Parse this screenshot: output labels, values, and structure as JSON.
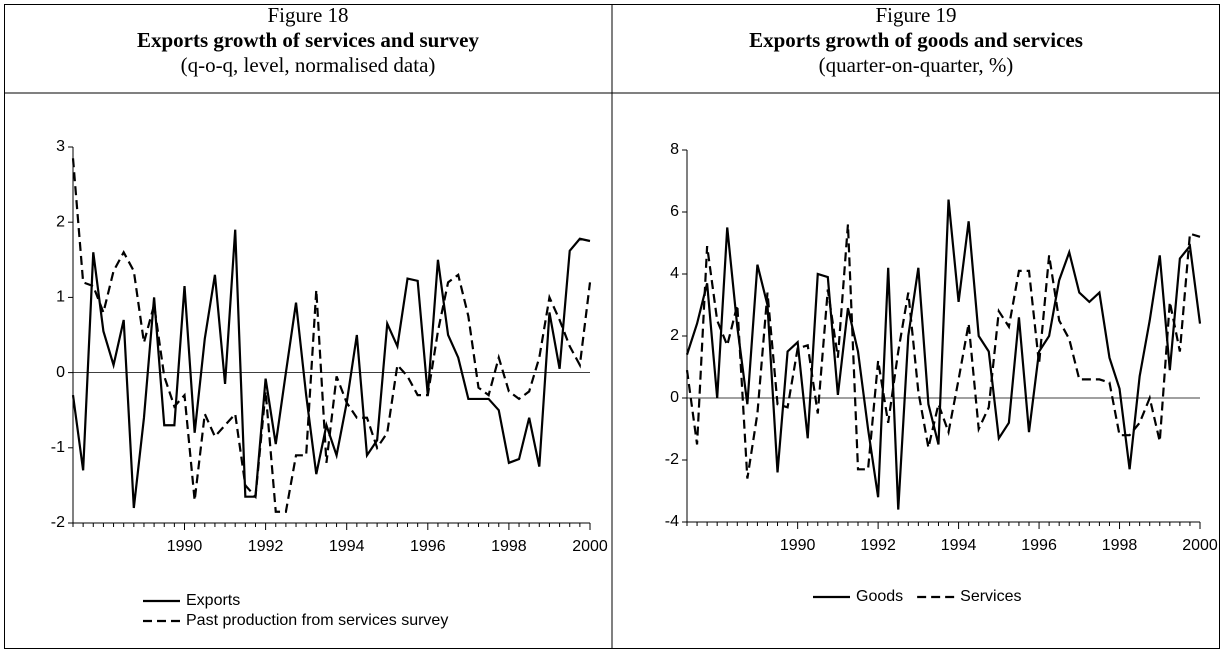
{
  "chart_data": [
    {
      "type": "line",
      "figure_label": "Figure 18",
      "title": "Exports growth of services and survey",
      "subtitle": "(q-o-q, level, normalised data)",
      "categories": [
        null,
        null,
        null,
        null,
        null,
        null,
        null,
        null,
        null,
        null,
        null,
        "1990",
        null,
        null,
        null,
        null,
        null,
        null,
        null,
        "1992",
        null,
        null,
        null,
        null,
        null,
        null,
        null,
        "1994",
        null,
        null,
        null,
        null,
        null,
        null,
        null,
        "1996",
        null,
        null,
        null,
        null,
        null,
        null,
        null,
        "1998",
        null,
        null,
        null,
        null,
        null,
        null,
        null,
        "2000"
      ],
      "ylim": [
        -2,
        3
      ],
      "yticks": [
        -2,
        -1,
        0,
        1,
        2,
        3
      ],
      "legend": "vertical",
      "series": [
        {
          "name": "Exports",
          "color": "#000000",
          "style": "solid",
          "values": [
            -0.3,
            -1.3,
            1.6,
            0.55,
            0.1,
            0.7,
            -1.8,
            -0.6,
            1.0,
            -0.7,
            -0.7,
            1.15,
            -0.8,
            0.45,
            1.3,
            -0.15,
            1.9,
            -1.65,
            -1.65,
            -0.08,
            -0.95,
            0.0,
            0.93,
            -0.3,
            -1.35,
            -0.7,
            -1.1,
            -0.4,
            0.5,
            -1.1,
            -0.9,
            0.65,
            0.35,
            1.25,
            1.22,
            -0.3,
            1.5,
            0.5,
            0.2,
            -0.35,
            -0.35,
            -0.35,
            -0.5,
            -1.2,
            -1.15,
            -0.6,
            -1.25,
            0.8,
            0.05,
            1.62,
            1.78,
            1.75
          ]
        },
        {
          "name": "Past production from services survey",
          "color": "#000000",
          "style": "dashed",
          "values": [
            2.85,
            1.2,
            1.15,
            0.8,
            1.35,
            1.6,
            1.35,
            0.4,
            0.9,
            -0.05,
            -0.45,
            -0.3,
            -1.7,
            -0.55,
            -0.85,
            -0.7,
            -0.55,
            -1.5,
            -1.65,
            -0.25,
            -1.85,
            -1.85,
            -1.1,
            -1.1,
            1.1,
            -1.2,
            -0.05,
            -0.4,
            -0.6,
            -0.6,
            -1.0,
            -0.8,
            0.1,
            -0.05,
            -0.3,
            -0.3,
            0.55,
            1.2,
            1.3,
            0.75,
            -0.2,
            -0.3,
            0.2,
            -0.25,
            -0.35,
            -0.25,
            0.2,
            1.0,
            0.7,
            0.35,
            0.1,
            1.2
          ]
        }
      ]
    },
    {
      "type": "line",
      "figure_label": "Figure 19",
      "title": "Exports growth of goods and services",
      "subtitle": "(quarter-on-quarter, %)",
      "categories": [
        null,
        null,
        null,
        null,
        null,
        null,
        null,
        null,
        null,
        null,
        null,
        "1990",
        null,
        null,
        null,
        null,
        null,
        null,
        null,
        "1992",
        null,
        null,
        null,
        null,
        null,
        null,
        null,
        "1994",
        null,
        null,
        null,
        null,
        null,
        null,
        null,
        "1996",
        null,
        null,
        null,
        null,
        null,
        null,
        null,
        "1998",
        null,
        null,
        null,
        null,
        null,
        null,
        null,
        "2000"
      ],
      "ylim": [
        -4,
        8
      ],
      "yticks": [
        -4,
        -2,
        0,
        2,
        4,
        6,
        8
      ],
      "legend": "horizontal",
      "series": [
        {
          "name": "Goods",
          "color": "#000000",
          "style": "solid",
          "values": [
            1.4,
            2.4,
            3.7,
            0,
            5.5,
            2.3,
            -0.2,
            4.3,
            3.0,
            -2.4,
            1.5,
            1.8,
            -1.3,
            4.0,
            3.9,
            0.1,
            2.9,
            1.5,
            -1.0,
            -3.2,
            4.2,
            -3.6,
            2.0,
            4.2,
            -0.2,
            -1.5,
            6.4,
            3.1,
            5.7,
            2.0,
            1.5,
            -1.3,
            -0.8,
            2.6,
            -1.1,
            1.5,
            2.0,
            3.8,
            4.7,
            3.4,
            3.1,
            3.4,
            1.3,
            0.3,
            -2.3,
            0.7,
            2.5,
            4.6,
            0.9,
            4.5,
            4.9,
            2.4
          ]
        },
        {
          "name": "Services",
          "color": "#000000",
          "style": "dashed",
          "values": [
            0.9,
            -1.5,
            4.9,
            2.5,
            1.7,
            3.0,
            -2.6,
            -0.5,
            3.4,
            -0.2,
            -0.3,
            1.6,
            1.7,
            -0.5,
            3.5,
            1.3,
            5.6,
            -2.3,
            -2.3,
            1.2,
            -0.8,
            1.5,
            3.4,
            0.2,
            -1.6,
            -0.2,
            -1.1,
            0.6,
            2.4,
            -1.0,
            -0.3,
            2.8,
            2.3,
            4.1,
            4.1,
            1.1,
            4.6,
            2.5,
            1.9,
            0.6,
            0.6,
            0.6,
            0.5,
            -1.2,
            -1.2,
            -0.8,
            0.0,
            -1.4,
            3.1,
            1.5,
            5.3,
            5.2
          ]
        }
      ]
    }
  ]
}
